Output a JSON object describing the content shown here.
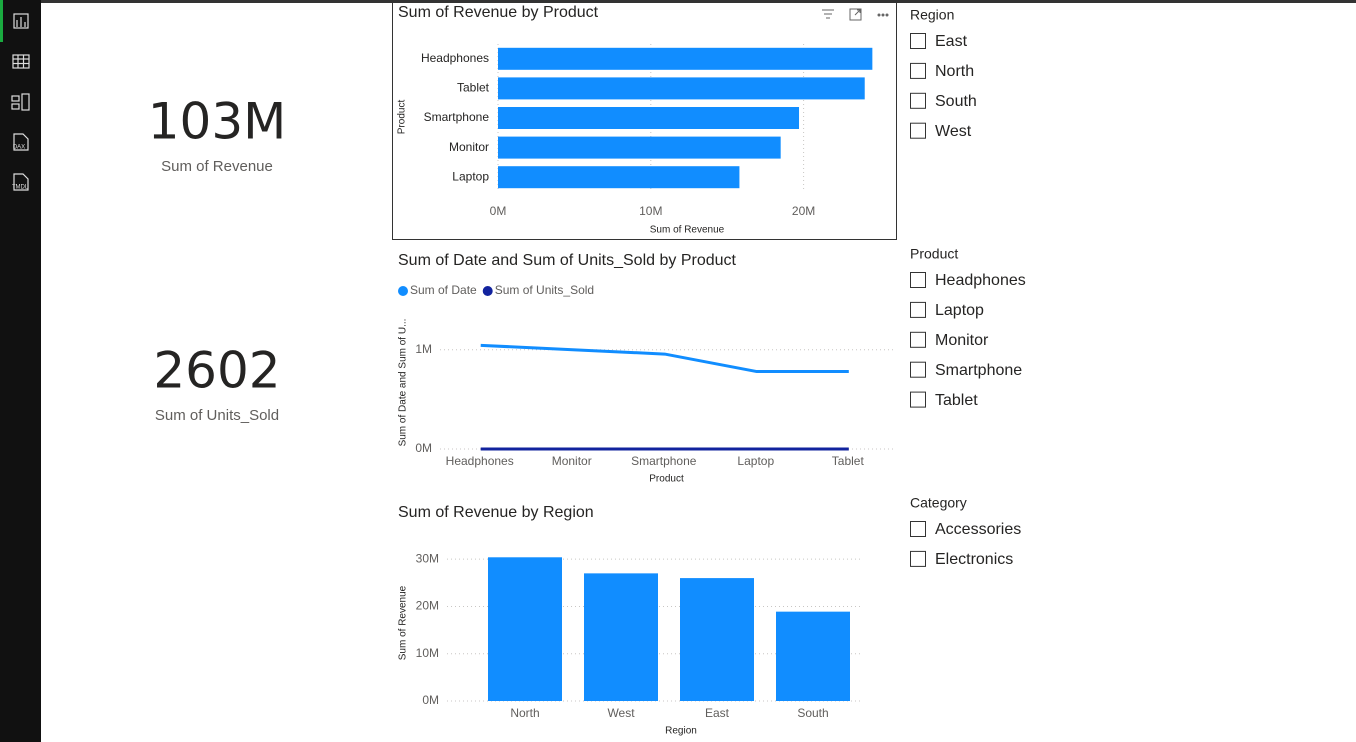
{
  "sidebar": [
    "DAX",
    "TMDL"
  ],
  "cards": [
    {
      "value": "103M",
      "label": "Sum of Revenue"
    },
    {
      "value": "2602",
      "label": "Sum of Units_Sold"
    }
  ],
  "chart_data": [
    {
      "type": "bar",
      "orientation": "horizontal",
      "title": "Sum of Revenue by Product",
      "x_label": "Sum of Revenue",
      "y_label": "Product",
      "categories": [
        "Headphones",
        "Tablet",
        "Smartphone",
        "Monitor",
        "Laptop"
      ],
      "values": [
        24500000,
        24000000,
        19700000,
        18500000,
        15800000
      ],
      "color": "#118DFF",
      "xlim": [
        0,
        25000000
      ],
      "xticks": [
        {
          "value": 0,
          "label": "0M"
        },
        {
          "value": 10000000,
          "label": "10M"
        },
        {
          "value": 20000000,
          "label": "20M"
        }
      ],
      "grid": true
    },
    {
      "type": "line",
      "title": "Sum of Date and Sum of Units_Sold by Product",
      "x_label": "Product",
      "y_label": "Sum of Date and Sum of U...",
      "categories": [
        "Headphones",
        "Monitor",
        "Smartphone",
        "Laptop",
        "Tablet"
      ],
      "series": [
        {
          "name": "Sum of Date",
          "color": "#118DFF",
          "values": [
            1044000,
            1000000,
            956000,
            780000,
            780000
          ]
        },
        {
          "name": "Sum of Units_Sold",
          "color": "#12239E",
          "values": [
            520,
            520,
            520,
            520,
            522
          ]
        }
      ],
      "ylim": [
        0,
        1400000
      ],
      "yticks": [
        {
          "value": 0,
          "label": "0M"
        },
        {
          "value": 1000000,
          "label": "1M"
        }
      ],
      "grid": true
    },
    {
      "type": "bar",
      "orientation": "vertical",
      "title": "Sum of Revenue by Region",
      "x_label": "Region",
      "y_label": "Sum of Revenue",
      "categories": [
        "North",
        "West",
        "East",
        "South"
      ],
      "values": [
        30400000,
        27000000,
        26000000,
        18900000
      ],
      "color": "#118DFF",
      "ylim": [
        0,
        33000000
      ],
      "yticks": [
        {
          "value": 0,
          "label": "0M"
        },
        {
          "value": 10000000,
          "label": "10M"
        },
        {
          "value": 20000000,
          "label": "20M"
        },
        {
          "value": 30000000,
          "label": "30M"
        }
      ],
      "grid": true
    }
  ],
  "slicers": [
    {
      "title": "Region",
      "items": [
        "East",
        "North",
        "South",
        "West"
      ]
    },
    {
      "title": "Product",
      "items": [
        "Headphones",
        "Laptop",
        "Monitor",
        "Smartphone",
        "Tablet"
      ]
    },
    {
      "title": "Category",
      "items": [
        "Accessories",
        "Electronics"
      ]
    }
  ]
}
